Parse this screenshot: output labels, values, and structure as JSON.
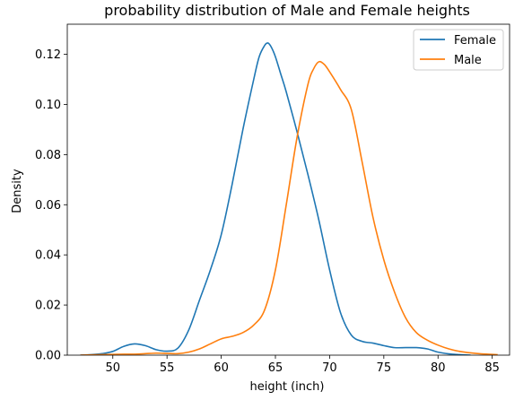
{
  "chart_data": {
    "type": "line",
    "title": "probability distribution of Male and Female heights",
    "xlabel": "height (inch)",
    "ylabel": "Density",
    "xlim": [
      45.8,
      86.6
    ],
    "ylim": [
      0,
      0.132
    ],
    "xticks": [
      50,
      55,
      60,
      65,
      70,
      75,
      80,
      85
    ],
    "yticks": [
      0.0,
      0.02,
      0.04,
      0.06,
      0.08,
      0.1,
      0.12
    ],
    "xtick_labels": [
      "50",
      "55",
      "60",
      "65",
      "70",
      "75",
      "80",
      "85"
    ],
    "ytick_labels": [
      "0.00",
      "0.02",
      "0.04",
      "0.06",
      "0.08",
      "0.10",
      "0.12"
    ],
    "grid": false,
    "legend_position": "top-right",
    "series": [
      {
        "name": "Female",
        "color": "#1f77b4",
        "x": [
          47,
          48,
          49,
          50,
          51,
          52,
          53,
          54,
          55,
          56,
          57,
          58,
          59,
          60,
          61,
          62,
          63,
          63.5,
          64,
          64.3,
          64.6,
          65,
          65.5,
          66,
          67,
          68,
          69,
          70,
          71,
          72,
          73,
          74,
          75,
          76,
          77,
          78,
          79,
          80,
          81,
          82,
          83
        ],
        "y": [
          0.0,
          0.0002,
          0.0006,
          0.0015,
          0.0035,
          0.0045,
          0.0038,
          0.0022,
          0.0016,
          0.0028,
          0.01,
          0.022,
          0.034,
          0.048,
          0.068,
          0.09,
          0.11,
          0.119,
          0.1235,
          0.1245,
          0.123,
          0.119,
          0.112,
          0.105,
          0.089,
          0.072,
          0.054,
          0.034,
          0.017,
          0.008,
          0.0055,
          0.0048,
          0.0038,
          0.003,
          0.003,
          0.003,
          0.0025,
          0.0012,
          0.0005,
          0.0002,
          0.0
        ]
      },
      {
        "name": "Male",
        "color": "#ff7f0e",
        "x": [
          47,
          48,
          49,
          50,
          51,
          52,
          53,
          54,
          55,
          56,
          57,
          58,
          59,
          60,
          61,
          62,
          63,
          64,
          65,
          66,
          67,
          68,
          68.5,
          69,
          69.5,
          70,
          71,
          72,
          73,
          74,
          75,
          76,
          77,
          78,
          79,
          80,
          81,
          82,
          83,
          84,
          85.5
        ],
        "y": [
          0.0,
          0.0001,
          0.0002,
          0.0003,
          0.0004,
          0.0004,
          0.0006,
          0.0008,
          0.0007,
          0.0006,
          0.0012,
          0.0025,
          0.0045,
          0.0065,
          0.0075,
          0.009,
          0.012,
          0.018,
          0.034,
          0.06,
          0.087,
          0.108,
          0.114,
          0.117,
          0.116,
          0.113,
          0.106,
          0.098,
          0.077,
          0.055,
          0.038,
          0.025,
          0.015,
          0.009,
          0.006,
          0.004,
          0.0025,
          0.0015,
          0.0009,
          0.0005,
          0.0002
        ]
      }
    ]
  }
}
